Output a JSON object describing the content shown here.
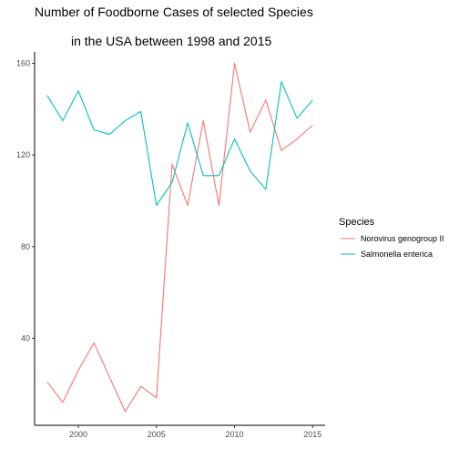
{
  "chart_data": {
    "type": "line",
    "title_lines": [
      "Number of Foodborne Cases of selected Species",
      "in the USA between 1998 and 2015"
    ],
    "xlabel": "",
    "ylabel": "",
    "xlim": [
      1997.2,
      2015.8
    ],
    "ylim": [
      2,
      165
    ],
    "x_ticks": [
      2000,
      2005,
      2010,
      2015
    ],
    "y_ticks": [
      40,
      80,
      120,
      160
    ],
    "x": [
      1998,
      1999,
      2000,
      2001,
      2002,
      2003,
      2004,
      2005,
      2006,
      2007,
      2008,
      2009,
      2010,
      2011,
      2012,
      2013,
      2014,
      2015
    ],
    "series": [
      {
        "name": "Norovirus genogroup II",
        "color": "#F8766D",
        "values": [
          21,
          12,
          26,
          38,
          23,
          8,
          19,
          14,
          116,
          98,
          135,
          98,
          160,
          130,
          144,
          122,
          127,
          133
        ]
      },
      {
        "name": "Salmonella enterica",
        "color": "#00BFC4",
        "values": [
          146,
          135,
          148,
          131,
          129,
          135,
          139,
          98,
          108,
          134,
          111,
          111,
          127,
          113,
          105,
          152,
          136,
          144
        ]
      }
    ],
    "grid": false,
    "legend": {
      "title": "Species",
      "placement": "right"
    }
  }
}
